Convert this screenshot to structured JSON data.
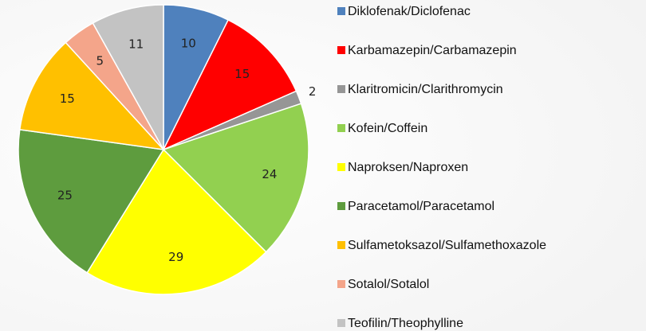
{
  "chart_data": {
    "type": "pie",
    "categories": [
      "Diklofenak/Diclofenac",
      "Karbamazepin/Carbamazepin",
      "Klaritromicin/Clarithromycin",
      "Kofein/Coffein",
      "Naproksen/Naproxen",
      "Paracetamol/Paracetamol",
      "Sulfametoksazol/Sulfamethoxazole",
      "Sotalol/Sotalol",
      "Teofilin/Theophylline"
    ],
    "values": [
      10,
      15,
      2,
      24,
      29,
      25,
      15,
      5,
      11
    ],
    "colors": [
      "#4f81bd",
      "#ff0000",
      "#969696",
      "#92d050",
      "#ffff00",
      "#5e9c3e",
      "#ffc000",
      "#f4a58a",
      "#c3c3c3"
    ],
    "legend": "right"
  }
}
